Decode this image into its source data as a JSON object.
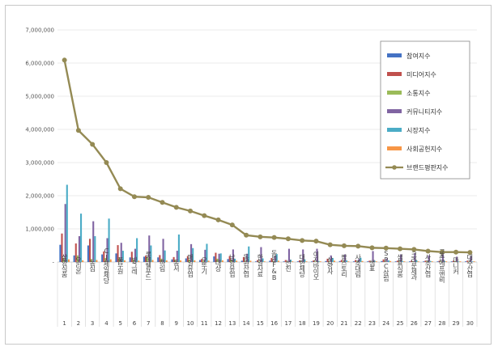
{
  "chart_data": {
    "type": "bar",
    "ylim": [
      0,
      7000000
    ],
    "yticks": [
      "-",
      "1,000,000",
      "2,000,000",
      "3,000,000",
      "4,000,000",
      "5,000,000",
      "6,000,000",
      "7,000,000"
    ],
    "grid": true,
    "legend_position": "top-right",
    "numbers": [
      "1",
      "2",
      "3",
      "4",
      "5",
      "6",
      "7",
      "8",
      "9",
      "10",
      "11",
      "12",
      "13",
      "14",
      "15",
      "16",
      "17",
      "18",
      "19",
      "20",
      "21",
      "22",
      "23",
      "24",
      "25",
      "26",
      "27",
      "28",
      "29",
      "30"
    ],
    "categories": [
      "삼양식품",
      "오리온",
      "농심",
      "CJ제일제당",
      "풀무원",
      "빙그레",
      "롯데웰푸드",
      "하림",
      "동서",
      "매일유업",
      "오뚜기",
      "대상",
      "남양유업",
      "동원산업",
      "한일사료",
      "동원F&B",
      "선진",
      "대한제당",
      "이지바이오",
      "삼양사",
      "팜스토리",
      "사조대림",
      "샘표",
      "SPC삼립",
      "샘표식품",
      "크라운제과",
      "사조산업",
      "교촌에프앤비",
      "마니커",
      "대주산업"
    ],
    "series": [
      {
        "name": "참여지수",
        "color": "#4472c4",
        "kind": "bar",
        "values": [
          520000,
          200000,
          500000,
          230000,
          260000,
          140000,
          160000,
          140000,
          80000,
          110000,
          60000,
          170000,
          90000,
          40000,
          20000,
          40000,
          20000,
          20000,
          20000,
          30000,
          30000,
          20000,
          20000,
          30000,
          20000,
          20000,
          20000,
          20000,
          20000,
          20000
        ]
      },
      {
        "name": "미디어지수",
        "color": "#c0504d",
        "kind": "bar",
        "values": [
          860000,
          560000,
          700000,
          320000,
          510000,
          310000,
          190000,
          210000,
          150000,
          180000,
          90000,
          280000,
          180000,
          150000,
          60000,
          120000,
          60000,
          50000,
          50000,
          100000,
          60000,
          60000,
          40000,
          80000,
          40000,
          40000,
          40000,
          40000,
          40000,
          40000
        ]
      },
      {
        "name": "소통지수",
        "color": "#9bbb59",
        "kind": "bar",
        "values": [
          130000,
          200000,
          90000,
          120000,
          120000,
          80000,
          140000,
          100000,
          70000,
          80000,
          40000,
          100000,
          50000,
          30000,
          20000,
          30000,
          20000,
          20000,
          20000,
          30000,
          30000,
          20000,
          20000,
          30000,
          20000,
          20000,
          20000,
          20000,
          20000,
          20000
        ]
      },
      {
        "name": "커뮤니티지수",
        "color": "#8064a2",
        "kind": "bar",
        "values": [
          1750000,
          780000,
          1230000,
          720000,
          580000,
          400000,
          800000,
          700000,
          340000,
          540000,
          370000,
          250000,
          380000,
          250000,
          450000,
          190000,
          400000,
          380000,
          400000,
          200000,
          230000,
          90000,
          330000,
          110000,
          230000,
          270000,
          200000,
          270000,
          160000,
          180000
        ]
      },
      {
        "name": "시장지수",
        "color": "#4bacc6",
        "kind": "bar",
        "values": [
          2330000,
          1460000,
          780000,
          1310000,
          340000,
          720000,
          500000,
          350000,
          830000,
          420000,
          550000,
          260000,
          100000,
          470000,
          110000,
          240000,
          70000,
          80000,
          30000,
          120000,
          50000,
          130000,
          40000,
          50000,
          30000,
          50000,
          30000,
          30000,
          20000,
          20000
        ]
      },
      {
        "name": "사회공헌지수",
        "color": "#f79646",
        "kind": "bar",
        "values": [
          80000,
          50000,
          60000,
          80000,
          50000,
          40000,
          60000,
          50000,
          50000,
          50000,
          40000,
          50000,
          40000,
          40000,
          20000,
          40000,
          20000,
          20000,
          20000,
          40000,
          20000,
          30000,
          20000,
          30000,
          20000,
          20000,
          20000,
          20000,
          20000,
          20000
        ]
      },
      {
        "name": "브랜드평판지수",
        "color": "#948a54",
        "kind": "line",
        "values": [
          6090000,
          3970000,
          3550000,
          3000000,
          2210000,
          1970000,
          1950000,
          1800000,
          1650000,
          1540000,
          1400000,
          1270000,
          1120000,
          810000,
          760000,
          740000,
          700000,
          650000,
          630000,
          520000,
          490000,
          480000,
          430000,
          420000,
          400000,
          380000,
          330000,
          300000,
          300000,
          290000
        ]
      }
    ]
  }
}
